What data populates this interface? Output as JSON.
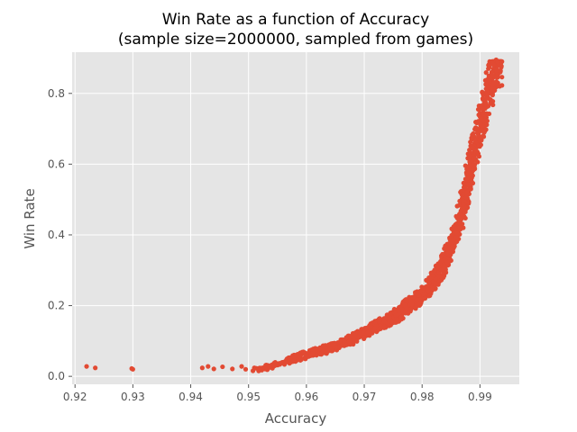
{
  "chart_data": {
    "type": "scatter",
    "title": "Win Rate as a function of Accuracy",
    "subtitle": "(sample size=2000000, sampled from games)",
    "xlabel": "Accuracy",
    "ylabel": "Win Rate",
    "xlim": [
      0.9195,
      0.9968
    ],
    "ylim": [
      -0.0225,
      0.9165
    ],
    "xticks": [
      0.92,
      0.93,
      0.94,
      0.95,
      0.96,
      0.97,
      0.98,
      0.99
    ],
    "xtick_labels": [
      "0.92",
      "0.93",
      "0.94",
      "0.95",
      "0.96",
      "0.97",
      "0.98",
      "0.99"
    ],
    "yticks": [
      0.0,
      0.2,
      0.4,
      0.6,
      0.8
    ],
    "ytick_labels": [
      "0.0",
      "0.2",
      "0.4",
      "0.6",
      "0.8"
    ],
    "grid": true,
    "style": "ggplot",
    "series": [
      {
        "color": "#E24A33",
        "points": [
          [
            0.922,
            0.028
          ],
          [
            0.9235,
            0.024
          ],
          [
            0.9298,
            0.022
          ],
          [
            0.93,
            0.02
          ],
          [
            0.942,
            0.024
          ],
          [
            0.943,
            0.028
          ],
          [
            0.944,
            0.021
          ],
          [
            0.9455,
            0.027
          ],
          [
            0.9472,
            0.021
          ],
          [
            0.9488,
            0.028
          ],
          [
            0.9495,
            0.02
          ],
          [
            0.951,
            0.024
          ],
          [
            0.952,
            0.02
          ],
          [
            0.953,
            0.027
          ],
          [
            0.954,
            0.03
          ],
          [
            0.955,
            0.035
          ],
          [
            0.956,
            0.04
          ],
          [
            0.957,
            0.045
          ],
          [
            0.958,
            0.05
          ],
          [
            0.96,
            0.062
          ],
          [
            0.962,
            0.07
          ],
          [
            0.965,
            0.085
          ],
          [
            0.968,
            0.105
          ],
          [
            0.97,
            0.125
          ],
          [
            0.972,
            0.14
          ],
          [
            0.975,
            0.165
          ],
          [
            0.977,
            0.19
          ],
          [
            0.98,
            0.23
          ],
          [
            0.9825,
            0.28
          ],
          [
            0.984,
            0.33
          ],
          [
            0.986,
            0.41
          ],
          [
            0.987,
            0.48
          ],
          [
            0.988,
            0.55
          ],
          [
            0.989,
            0.64
          ],
          [
            0.9905,
            0.73
          ],
          [
            0.9915,
            0.81
          ],
          [
            0.9925,
            0.87
          ],
          [
            0.9935,
            0.86
          ],
          [
            0.9928,
            0.895
          ]
        ]
      }
    ]
  }
}
